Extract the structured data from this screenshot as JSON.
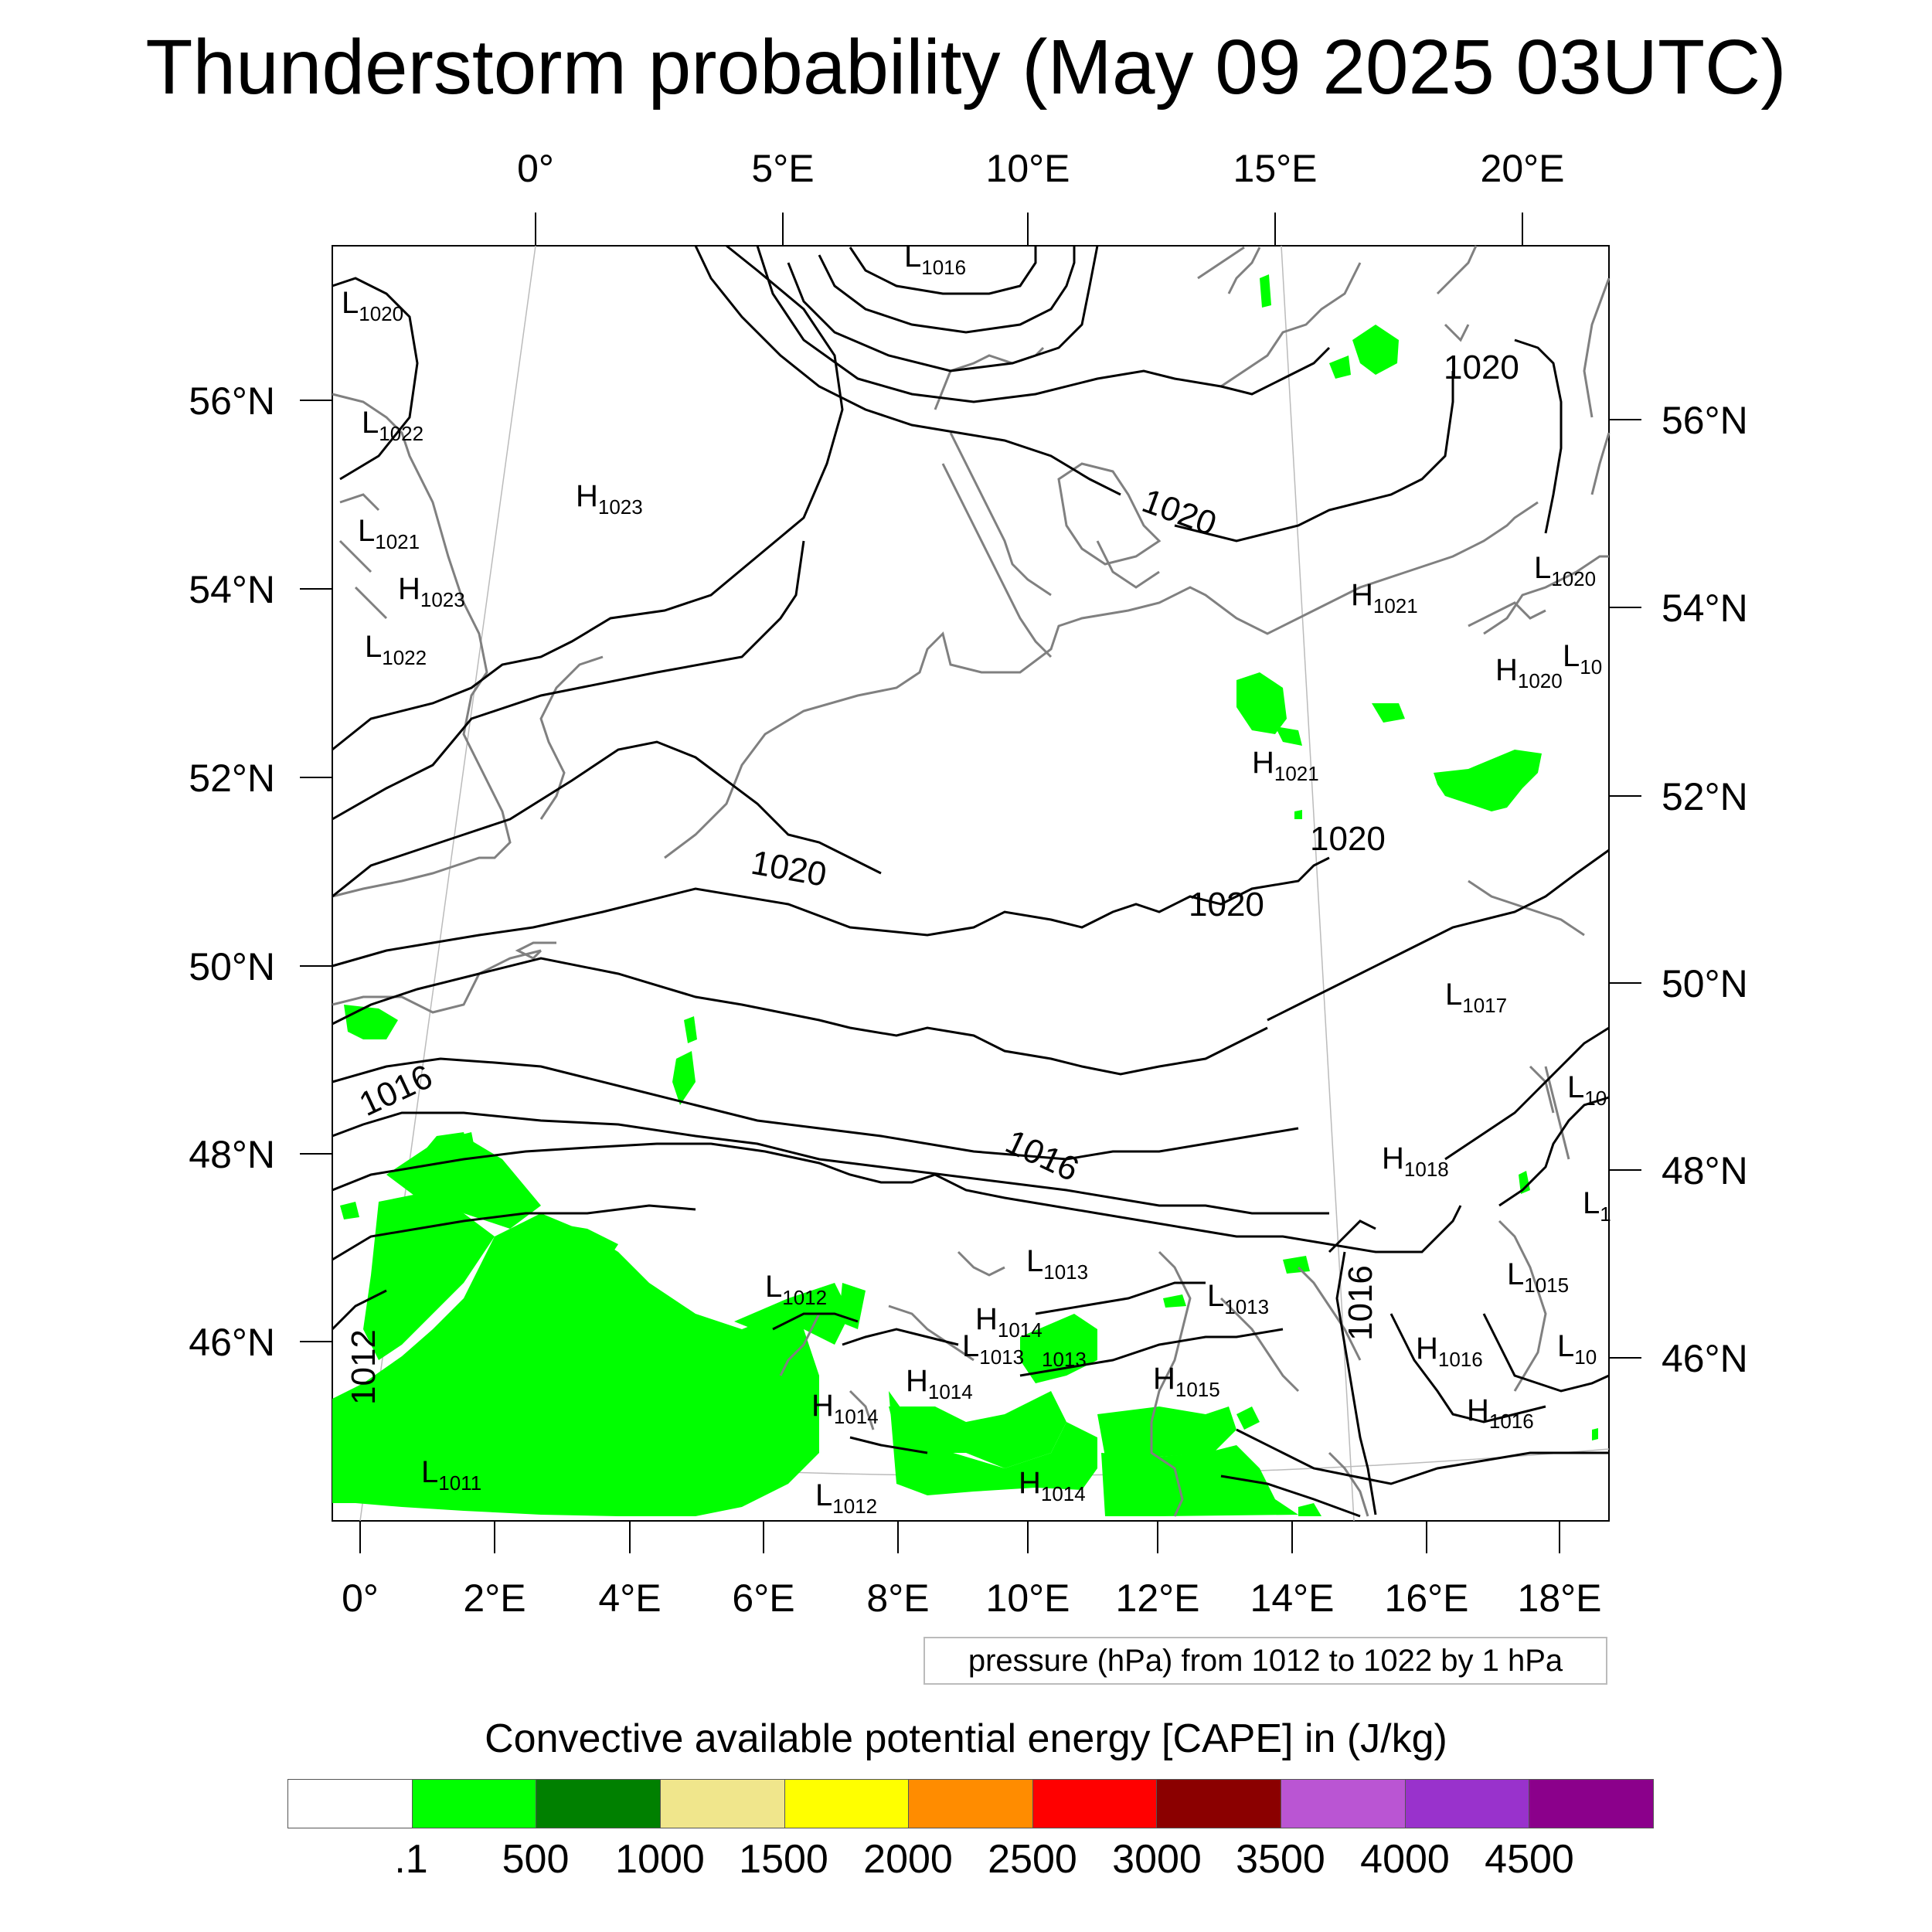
{
  "title": "Thunderstorm probability (May 09 2025 03UTC)",
  "axes": {
    "top_lon": [
      "0°",
      "5°E",
      "10°E",
      "15°E",
      "20°E"
    ],
    "bottom_lon": [
      "0°",
      "2°E",
      "4°E",
      "6°E",
      "8°E",
      "10°E",
      "12°E",
      "14°E",
      "16°E",
      "18°E"
    ],
    "left_lat": [
      "56°N",
      "54°N",
      "52°N",
      "50°N",
      "48°N",
      "46°N"
    ],
    "right_lat": [
      "56°N",
      "54°N",
      "52°N",
      "50°N",
      "48°N",
      "46°N"
    ]
  },
  "isobar_labels": [
    "1020",
    "1020",
    "1020",
    "1020",
    "1020",
    "1016",
    "1016",
    "1016",
    "1012"
  ],
  "pressure_centers": [
    {
      "type": "L",
      "value": "1016"
    },
    {
      "type": "L",
      "value": "1020"
    },
    {
      "type": "L",
      "value": "1022"
    },
    {
      "type": "H",
      "value": "1023"
    },
    {
      "type": "L",
      "value": "1021"
    },
    {
      "type": "H",
      "value": "1023"
    },
    {
      "type": "L",
      "value": "1022"
    },
    {
      "type": "H",
      "value": "1021"
    },
    {
      "type": "L",
      "value": "1020"
    },
    {
      "type": "H",
      "value": "1020"
    },
    {
      "type": "L",
      "value": "10"
    },
    {
      "type": "H",
      "value": "1021"
    },
    {
      "type": "L",
      "value": "1017"
    },
    {
      "type": "L",
      "value": "10"
    },
    {
      "type": "H",
      "value": "1018"
    },
    {
      "type": "L",
      "value": "1"
    },
    {
      "type": "L",
      "value": "1013"
    },
    {
      "type": "L",
      "value": "1012"
    },
    {
      "type": "L",
      "value": "1013"
    },
    {
      "type": "H",
      "value": "1014"
    },
    {
      "type": "L",
      "value": "1013"
    },
    {
      "type": "L",
      "value": "1015"
    },
    {
      "type": "H",
      "value": "1016"
    },
    {
      "type": "L",
      "value": "10"
    },
    {
      "type": "H",
      "value": "1014"
    },
    {
      "type": "H",
      "value": "1014"
    },
    {
      "type": "H",
      "value": "1015"
    },
    {
      "type": "H",
      "value": "1016"
    },
    {
      "type": "L",
      "value": "1011"
    },
    {
      "type": "L",
      "value": "1012"
    },
    {
      "type": "H",
      "value": "1014"
    }
  ],
  "stray_label": "1013",
  "info_box": "pressure (hPa) from 1012 to 1022 by 1 hPa",
  "legend": {
    "title": "Convective available potential energy [CAPE] in (J/kg)",
    "colors": [
      "#ffffff",
      "#00ff00",
      "#008000",
      "#f0e68c",
      "#ffff00",
      "#ff8c00",
      "#ff0000",
      "#8b0000",
      "#ba55d3",
      "#9932cc",
      "#8b008b"
    ],
    "labels": [
      ".1",
      "500",
      "1000",
      "1500",
      "2000",
      "2500",
      "3000",
      "3500",
      "4000",
      "4500"
    ]
  },
  "colors": {
    "cape_low": "#00ff00",
    "coastline": "#808080",
    "isobar": "#000000"
  }
}
